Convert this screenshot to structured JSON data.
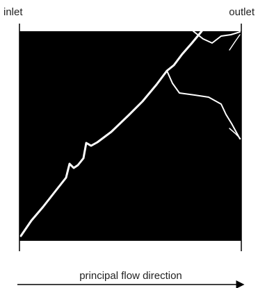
{
  "labels": {
    "inlet": "inlet",
    "outlet": "outlet"
  },
  "caption": "principal flow direction"
}
